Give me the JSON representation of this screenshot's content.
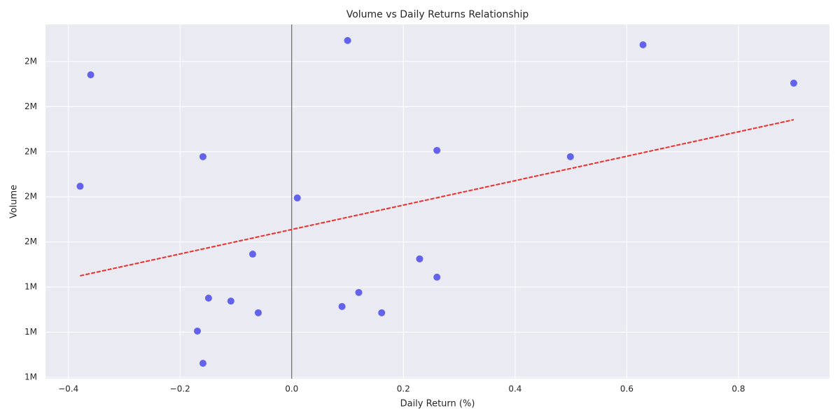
{
  "chart_data": {
    "type": "scatter",
    "title": "Volume vs Daily Returns Relationship",
    "x_label": "Daily Return (%)",
    "y_label": "Volume",
    "xlim": [
      -0.441,
      0.963
    ],
    "ylim": [
      993800,
      2564000
    ],
    "xticks": [
      {
        "value": -0.4,
        "label": "−0.4"
      },
      {
        "value": -0.2,
        "label": "−0.2"
      },
      {
        "value": 0,
        "label": "0.0"
      },
      0.2,
      0.4,
      0.6,
      0.8
    ],
    "yticks": [
      {
        "value": 1000000,
        "label": "1M"
      },
      {
        "value": 1200000,
        "label": "1M"
      },
      {
        "value": 1400000,
        "label": "1M"
      },
      {
        "value": 1600000,
        "label": "2M"
      },
      {
        "value": 1800000,
        "label": "2M"
      },
      {
        "value": 2000000,
        "label": "2M"
      },
      {
        "value": 2200000,
        "label": "2M"
      },
      {
        "value": 2400000,
        "label": "2M"
      }
    ],
    "grid": true,
    "vline": 0,
    "points": {
      "color": "#5b5bea",
      "x": [
        0.1,
        0.629,
        -0.36,
        0.899,
        -0.159,
        0.26,
        0.499,
        -0.379,
        0.01,
        -0.07,
        0.229,
        0.26,
        0.12,
        -0.149,
        -0.109,
        0.09,
        -0.06,
        0.161,
        -0.169,
        -0.159
      ],
      "values": [
        2493000,
        2474000,
        2341000,
        2304000,
        1978000,
        2006000,
        1978000,
        1847000,
        1795000,
        1546000,
        1525000,
        1444000,
        1376000,
        1351000,
        1338000,
        1314000,
        1286000,
        1286000,
        1205000,
        1062000
      ]
    },
    "trend": {
      "color": "#e8302c",
      "x": [
        -0.379,
        0.899
      ],
      "values": [
        1450000,
        2142000
      ]
    }
  }
}
